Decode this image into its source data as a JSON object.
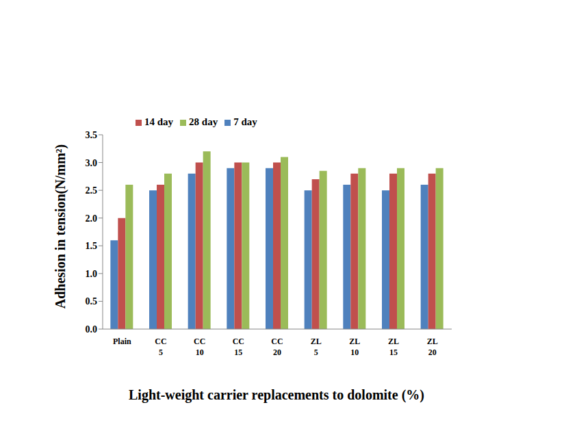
{
  "chart_data": {
    "type": "bar",
    "x_label": "Light-weight carrier replacements to dolomite (%)",
    "y_label": "Adhesion in tension(N/mm²)",
    "categories": [
      "Plain",
      "CC 5",
      "CC 10",
      "CC 15",
      "CC 20",
      "ZL 5",
      "ZL 10",
      "ZL 15",
      "ZL 20"
    ],
    "series": [
      {
        "name": "7 day",
        "color": "#4F81BD",
        "values": [
          1.6,
          2.5,
          2.8,
          2.9,
          2.9,
          2.5,
          2.6,
          2.5,
          2.6
        ]
      },
      {
        "name": "14 day",
        "color": "#C0504D",
        "values": [
          2.0,
          2.6,
          3.0,
          3.0,
          3.0,
          2.7,
          2.8,
          2.8,
          2.8
        ]
      },
      {
        "name": "28 day",
        "color": "#9BBB59",
        "values": [
          2.6,
          2.8,
          3.2,
          3.0,
          3.1,
          2.85,
          2.9,
          2.9,
          2.9
        ]
      }
    ],
    "ylim": [
      0,
      3.5
    ],
    "yticks": [
      {
        "value": 0,
        "label": "0.0"
      },
      0.5,
      {
        "value": 1,
        "label": "1.0"
      },
      1.5,
      {
        "value": 2,
        "label": "2.0"
      },
      2.5,
      {
        "value": 3,
        "label": "3.0"
      },
      3.5
    ],
    "grid": false,
    "legend": "top"
  }
}
